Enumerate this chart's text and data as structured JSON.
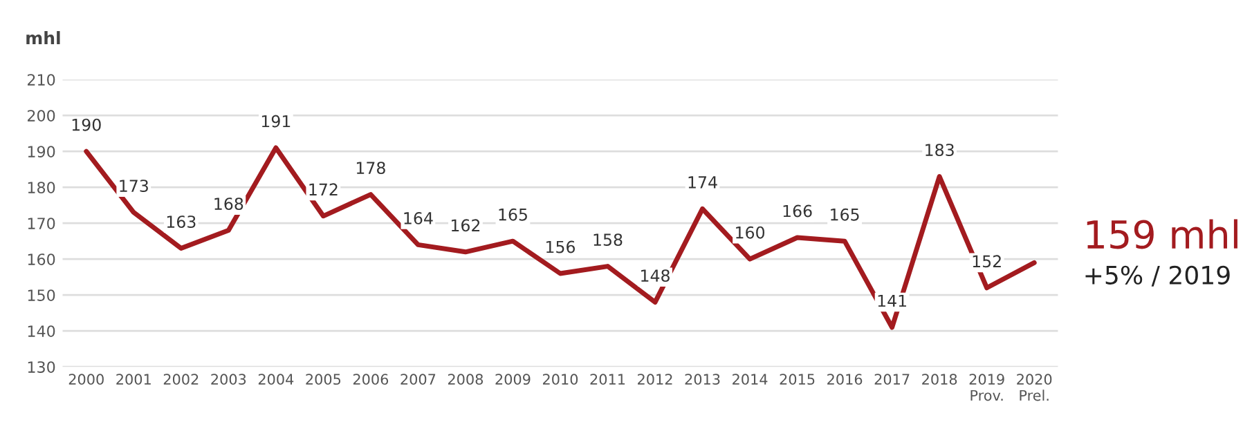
{
  "chart_data": {
    "type": "line",
    "ylabel": "mhl",
    "categories": [
      "2000",
      "2001",
      "2002",
      "2003",
      "2004",
      "2005",
      "2006",
      "2007",
      "2008",
      "2009",
      "2010",
      "2011",
      "2012",
      "2013",
      "2014",
      "2015",
      "2016",
      "2017",
      "2018",
      "2019\nProv.",
      "2020\nPrel."
    ],
    "series": [
      {
        "color": "#a31b1f",
        "values": [
          190,
          173,
          163,
          168,
          191,
          172,
          178,
          164,
          162,
          165,
          156,
          158,
          148,
          174,
          160,
          166,
          165,
          141,
          183,
          152,
          159
        ],
        "value_labels": [
          "190",
          "173",
          "163",
          "168",
          "191",
          "172",
          "178",
          "164",
          "162",
          "165",
          "156",
          "158",
          "148",
          "174",
          "160",
          "166",
          "165",
          "141",
          "183",
          "152",
          null
        ]
      }
    ],
    "ylim": [
      130,
      210
    ],
    "yticks": [
      130,
      140,
      150,
      160,
      170,
      180,
      190,
      200,
      210
    ],
    "grid": "y",
    "marker": "none",
    "line_style": "solid",
    "annotations": [
      "159 mhl",
      "+5% / 2019"
    ]
  }
}
